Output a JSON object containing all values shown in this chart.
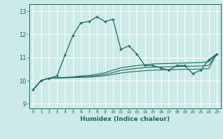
{
  "title": "",
  "xlabel": "Humidex (Indice chaleur)",
  "bg_color": "#cceae7",
  "line_color": "#1a6b5e",
  "grid_color": "#ffffff",
  "xlim": [
    -0.5,
    23.5
  ],
  "ylim": [
    8.8,
    13.3
  ],
  "yticks": [
    9,
    10,
    11,
    12,
    13
  ],
  "xticks": [
    0,
    1,
    2,
    3,
    4,
    5,
    6,
    7,
    8,
    9,
    10,
    11,
    12,
    13,
    14,
    15,
    16,
    17,
    18,
    19,
    20,
    21,
    22,
    23
  ],
  "series": [
    {
      "x": [
        0,
        1,
        2,
        3,
        4,
        5,
        6,
        7,
        8,
        9,
        10,
        11,
        12,
        13,
        14,
        15,
        16,
        17,
        18,
        19,
        20,
        21,
        22,
        23
      ],
      "y": [
        9.6,
        10.0,
        10.1,
        10.2,
        11.1,
        11.95,
        12.5,
        12.55,
        12.75,
        12.55,
        12.65,
        11.35,
        11.5,
        11.15,
        10.65,
        10.65,
        10.55,
        10.45,
        10.65,
        10.65,
        10.3,
        10.45,
        10.9,
        11.15
      ],
      "marker": true
    },
    {
      "x": [
        0,
        1,
        2,
        3,
        4,
        5,
        6,
        7,
        8,
        9,
        10,
        11,
        12,
        13,
        14,
        15,
        16,
        17,
        18,
        19,
        20,
        21,
        22,
        23
      ],
      "y": [
        9.6,
        10.0,
        10.1,
        10.12,
        10.14,
        10.16,
        10.2,
        10.22,
        10.28,
        10.34,
        10.45,
        10.55,
        10.6,
        10.65,
        10.68,
        10.72,
        10.73,
        10.74,
        10.75,
        10.76,
        10.77,
        10.78,
        10.82,
        11.15
      ],
      "marker": false
    },
    {
      "x": [
        0,
        1,
        2,
        3,
        4,
        5,
        6,
        7,
        8,
        9,
        10,
        11,
        12,
        13,
        14,
        15,
        16,
        17,
        18,
        19,
        20,
        21,
        22,
        23
      ],
      "y": [
        9.6,
        10.0,
        10.1,
        10.12,
        10.13,
        10.14,
        10.17,
        10.18,
        10.22,
        10.27,
        10.35,
        10.44,
        10.49,
        10.53,
        10.56,
        10.58,
        10.59,
        10.6,
        10.61,
        10.62,
        10.62,
        10.63,
        10.66,
        11.15
      ],
      "marker": false
    },
    {
      "x": [
        0,
        1,
        2,
        3,
        4,
        5,
        6,
        7,
        8,
        9,
        10,
        11,
        12,
        13,
        14,
        15,
        16,
        17,
        18,
        19,
        20,
        21,
        22,
        23
      ],
      "y": [
        9.6,
        10.0,
        10.1,
        10.11,
        10.12,
        10.13,
        10.14,
        10.15,
        10.18,
        10.21,
        10.27,
        10.33,
        10.37,
        10.4,
        10.43,
        10.45,
        10.46,
        10.47,
        10.48,
        10.49,
        10.49,
        10.5,
        10.52,
        11.15
      ],
      "marker": false
    }
  ]
}
